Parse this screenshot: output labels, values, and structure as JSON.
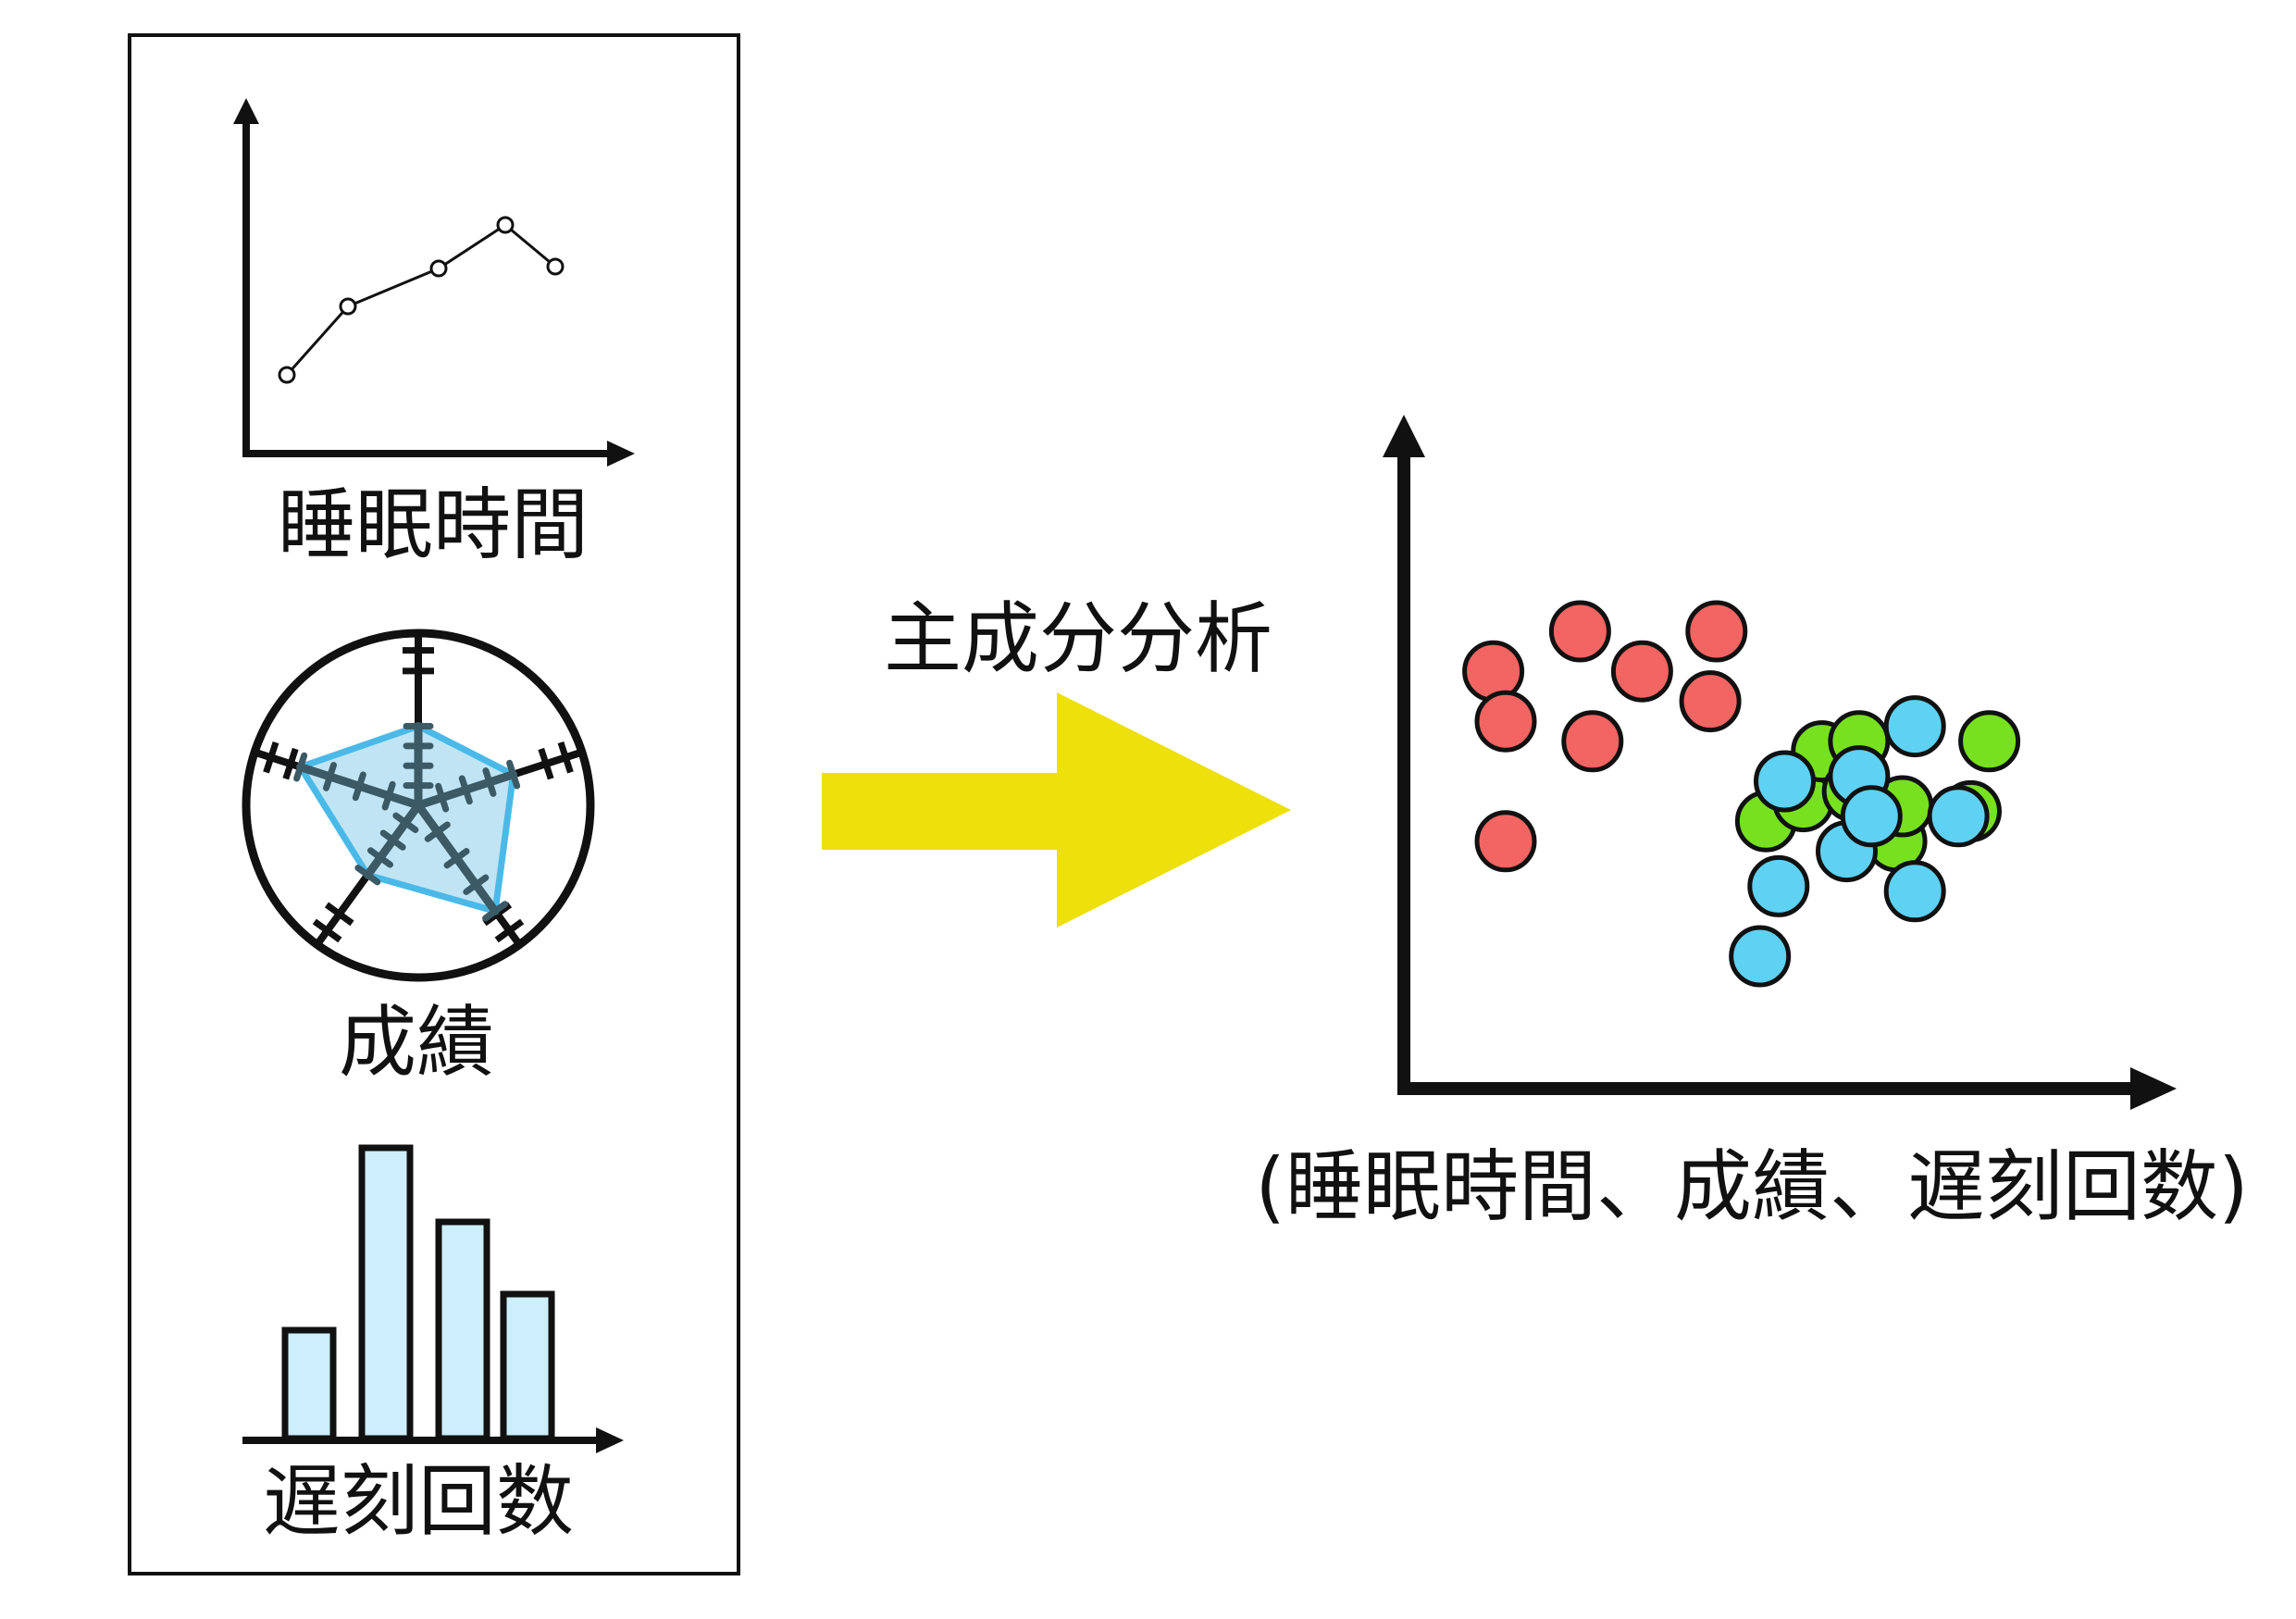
{
  "inputs": {
    "line_label": "睡眠時間",
    "radar_label": "成績",
    "bar_label": "遅刻回数"
  },
  "process_label": "主成分分析",
  "output": {
    "axis_caption": "(睡眠時間、成績、遅刻回数)"
  },
  "colors": {
    "arrow": "#ede00b",
    "radar_fill": "#bde3f2",
    "radar_stroke": "#4ab9e8",
    "bar_fill": "#cdeefb",
    "cluster_red": "#f26562",
    "cluster_green": "#77e11f",
    "cluster_blue": "#5fd1f2"
  },
  "clusters": [
    {
      "color_key": "cluster_red",
      "points": [
        [
          0.08,
          0.62
        ],
        [
          0.1,
          0.52
        ],
        [
          0.1,
          0.28
        ],
        [
          0.22,
          0.7
        ],
        [
          0.24,
          0.48
        ],
        [
          0.32,
          0.62
        ],
        [
          0.43,
          0.56
        ],
        [
          0.44,
          0.7
        ]
      ]
    },
    {
      "color_key": "cluster_green",
      "points": [
        [
          0.52,
          0.32
        ],
        [
          0.58,
          0.36
        ],
        [
          0.61,
          0.46
        ],
        [
          0.66,
          0.38
        ],
        [
          0.67,
          0.48
        ],
        [
          0.73,
          0.28
        ],
        [
          0.74,
          0.35
        ],
        [
          0.85,
          0.34
        ],
        [
          0.88,
          0.48
        ]
      ]
    },
    {
      "color_key": "cluster_blue",
      "points": [
        [
          0.51,
          0.05
        ],
        [
          0.54,
          0.19
        ],
        [
          0.55,
          0.4
        ],
        [
          0.65,
          0.26
        ],
        [
          0.67,
          0.41
        ],
        [
          0.69,
          0.33
        ],
        [
          0.76,
          0.18
        ],
        [
          0.76,
          0.51
        ],
        [
          0.83,
          0.33
        ]
      ]
    }
  ]
}
